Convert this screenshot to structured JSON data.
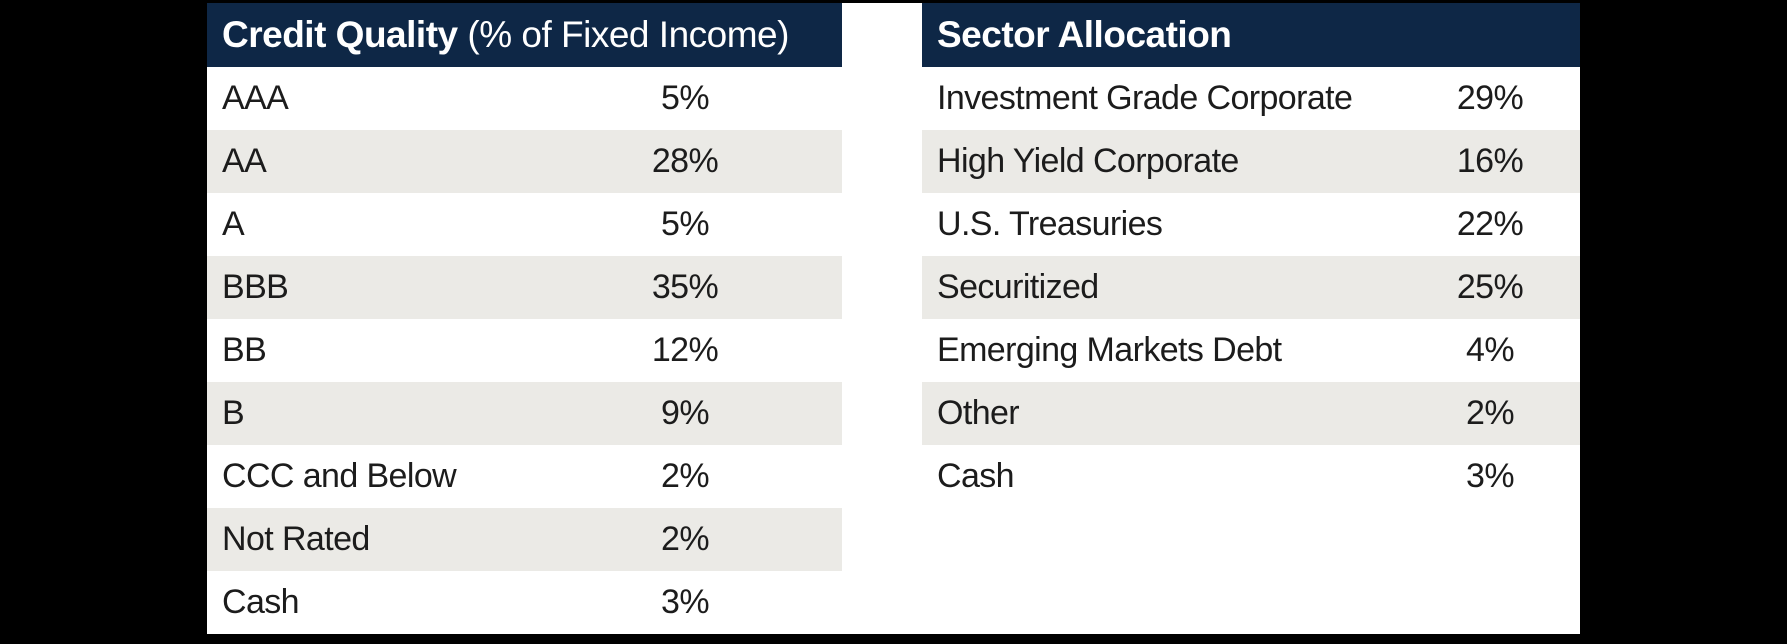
{
  "colors": {
    "page_background": "#000000",
    "panel_background": "#ffffff",
    "header_background": "#0e2746",
    "header_text": "#ffffff",
    "stripe_row_background": "#ebeae6",
    "row_text": "#1c1c1c"
  },
  "tables": [
    {
      "id": "credit-quality",
      "title_bold": "Credit Quality",
      "title_note": " (% of Fixed Income)",
      "rows": [
        {
          "label": "AAA",
          "value": "5%"
        },
        {
          "label": "AA",
          "value": "28%"
        },
        {
          "label": "A",
          "value": "5%"
        },
        {
          "label": "BBB",
          "value": "35%"
        },
        {
          "label": "BB",
          "value": "12%"
        },
        {
          "label": "B",
          "value": "9%"
        },
        {
          "label": "CCC and Below",
          "value": "2%"
        },
        {
          "label": "Not Rated",
          "value": "2%"
        },
        {
          "label": "Cash",
          "value": "3%"
        }
      ]
    },
    {
      "id": "sector-allocation",
      "title_bold": "Sector Allocation",
      "title_note": "",
      "rows": [
        {
          "label": "Investment Grade Corporate",
          "value": "29%"
        },
        {
          "label": "High Yield Corporate",
          "value": "16%"
        },
        {
          "label": "U.S. Treasuries",
          "value": "22%"
        },
        {
          "label": "Securitized",
          "value": "25%"
        },
        {
          "label": "Emerging Markets Debt",
          "value": "4%"
        },
        {
          "label": "Other",
          "value": "2%"
        },
        {
          "label": "Cash",
          "value": "3%"
        }
      ]
    }
  ],
  "chart_data": [
    {
      "type": "table",
      "title": "Credit Quality (% of Fixed Income)",
      "categories": [
        "AAA",
        "AA",
        "A",
        "BBB",
        "BB",
        "B",
        "CCC and Below",
        "Not Rated",
        "Cash"
      ],
      "values": [
        5,
        28,
        5,
        35,
        12,
        9,
        2,
        2,
        3
      ],
      "value_unit": "%"
    },
    {
      "type": "table",
      "title": "Sector Allocation",
      "categories": [
        "Investment Grade Corporate",
        "High Yield Corporate",
        "U.S. Treasuries",
        "Securitized",
        "Emerging Markets Debt",
        "Other",
        "Cash"
      ],
      "values": [
        29,
        16,
        22,
        25,
        4,
        2,
        3
      ],
      "value_unit": "%"
    }
  ]
}
